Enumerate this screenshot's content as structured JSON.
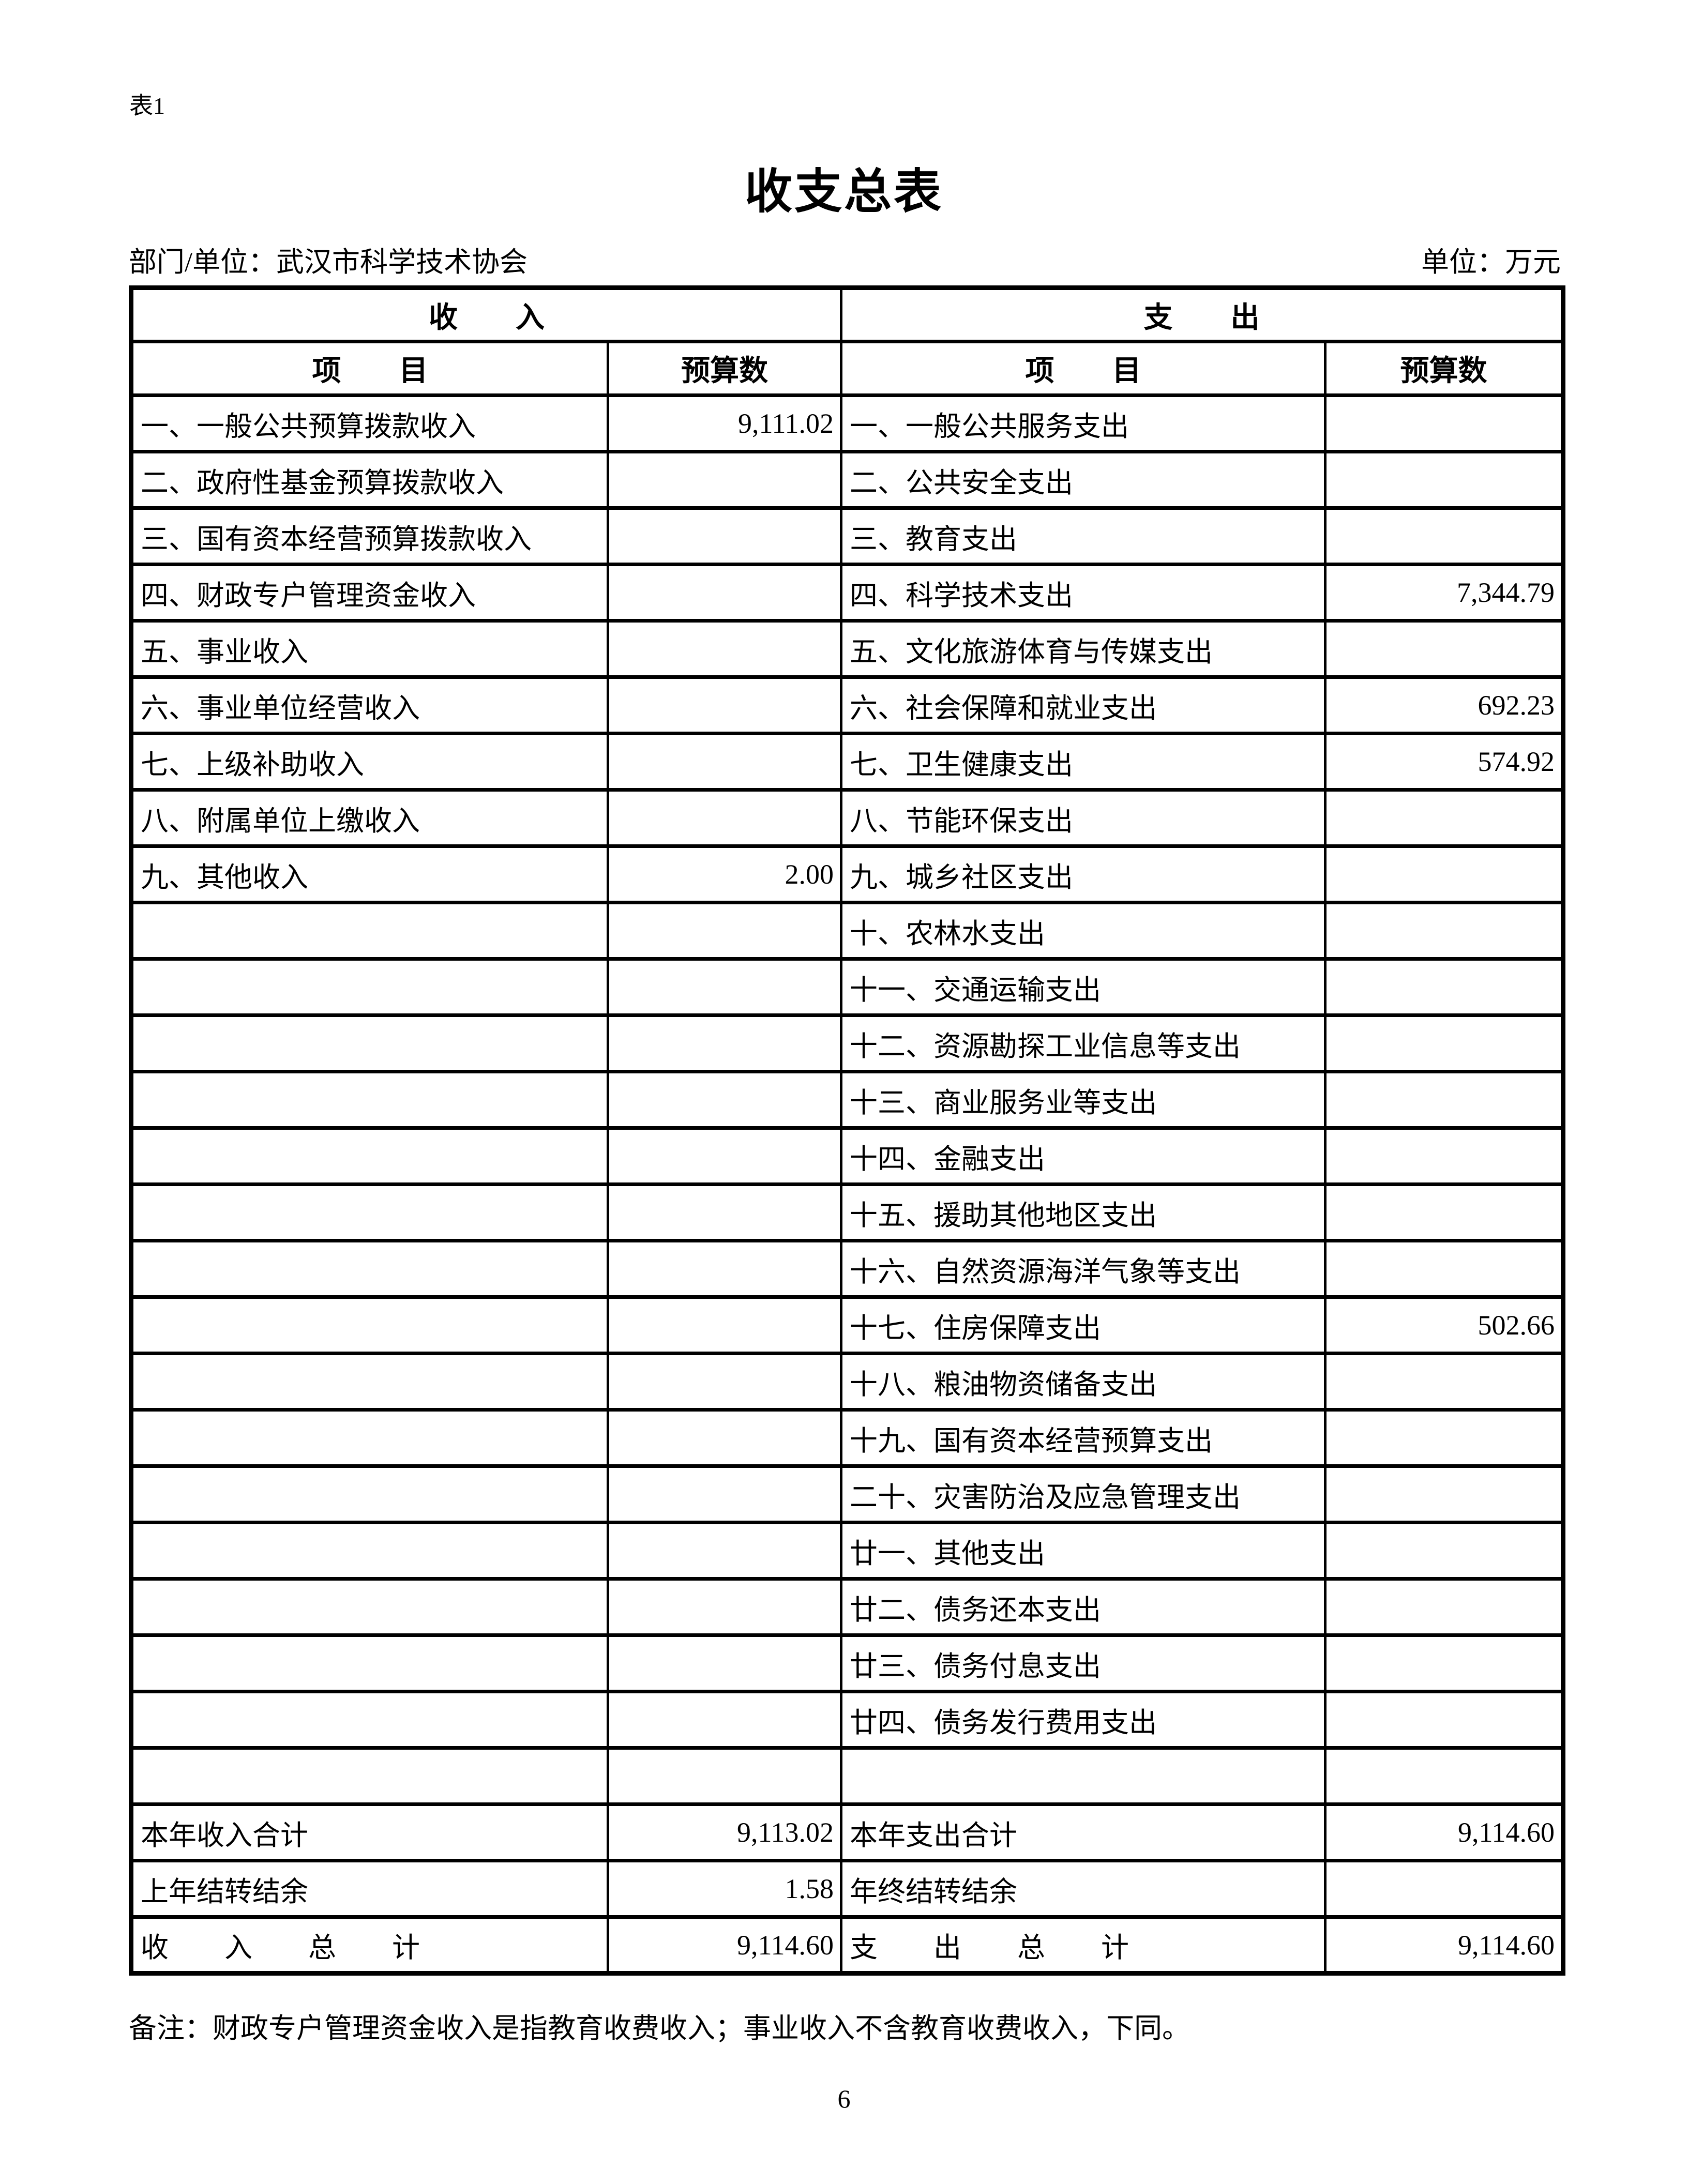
{
  "page": {
    "table_label": "表1",
    "title": "收支总表",
    "department_label": "部门/单位：武汉市科学技术协会",
    "unit_label": "单位：万元",
    "note": "备注：财政专户管理资金收入是指教育收费收入；事业收入不含教育收费收入，下同。",
    "page_number": "6"
  },
  "table": {
    "income_header": "收　　入",
    "expense_header": "支　　出",
    "item_header": "项　　目",
    "budget_header": "预算数",
    "rows": [
      {
        "income_item": "一、一般公共预算拨款收入",
        "income_value": "9,111.02",
        "expense_item": "一、一般公共服务支出",
        "expense_value": ""
      },
      {
        "income_item": "二、政府性基金预算拨款收入",
        "income_value": "",
        "expense_item": "二、公共安全支出",
        "expense_value": ""
      },
      {
        "income_item": "三、国有资本经营预算拨款收入",
        "income_value": "",
        "expense_item": "三、教育支出",
        "expense_value": ""
      },
      {
        "income_item": "四、财政专户管理资金收入",
        "income_value": "",
        "expense_item": "四、科学技术支出",
        "expense_value": "7,344.79"
      },
      {
        "income_item": "五、事业收入",
        "income_value": "",
        "expense_item": "五、文化旅游体育与传媒支出",
        "expense_value": ""
      },
      {
        "income_item": "六、事业单位经营收入",
        "income_value": "",
        "expense_item": "六、社会保障和就业支出",
        "expense_value": "692.23"
      },
      {
        "income_item": "七、上级补助收入",
        "income_value": "",
        "expense_item": "七、卫生健康支出",
        "expense_value": "574.92"
      },
      {
        "income_item": "八、附属单位上缴收入",
        "income_value": "",
        "expense_item": "八、节能环保支出",
        "expense_value": ""
      },
      {
        "income_item": "九、其他收入",
        "income_value": "2.00",
        "expense_item": "九、城乡社区支出",
        "expense_value": ""
      },
      {
        "income_item": "",
        "income_value": "",
        "expense_item": "十、农林水支出",
        "expense_value": ""
      },
      {
        "income_item": "",
        "income_value": "",
        "expense_item": "十一、交通运输支出",
        "expense_value": ""
      },
      {
        "income_item": "",
        "income_value": "",
        "expense_item": "十二、资源勘探工业信息等支出",
        "expense_value": ""
      },
      {
        "income_item": "",
        "income_value": "",
        "expense_item": "十三、商业服务业等支出",
        "expense_value": ""
      },
      {
        "income_item": "",
        "income_value": "",
        "expense_item": "十四、金融支出",
        "expense_value": ""
      },
      {
        "income_item": "",
        "income_value": "",
        "expense_item": "十五、援助其他地区支出",
        "expense_value": ""
      },
      {
        "income_item": "",
        "income_value": "",
        "expense_item": "十六、自然资源海洋气象等支出",
        "expense_value": ""
      },
      {
        "income_item": "",
        "income_value": "",
        "expense_item": "十七、住房保障支出",
        "expense_value": "502.66"
      },
      {
        "income_item": "",
        "income_value": "",
        "expense_item": "十八、粮油物资储备支出",
        "expense_value": ""
      },
      {
        "income_item": "",
        "income_value": "",
        "expense_item": "十九、国有资本经营预算支出",
        "expense_value": ""
      },
      {
        "income_item": "",
        "income_value": "",
        "expense_item": "二十、灾害防治及应急管理支出",
        "expense_value": ""
      },
      {
        "income_item": "",
        "income_value": "",
        "expense_item": "廿一、其他支出",
        "expense_value": ""
      },
      {
        "income_item": "",
        "income_value": "",
        "expense_item": "廿二、债务还本支出",
        "expense_value": ""
      },
      {
        "income_item": "",
        "income_value": "",
        "expense_item": "廿三、债务付息支出",
        "expense_value": ""
      },
      {
        "income_item": "",
        "income_value": "",
        "expense_item": "廿四、债务发行费用支出",
        "expense_value": ""
      },
      {
        "income_item": "",
        "income_value": "",
        "expense_item": "",
        "expense_value": ""
      }
    ],
    "totals": [
      {
        "income_item": "本年收入合计",
        "income_value": "9,113.02",
        "expense_item": "本年支出合计",
        "expense_value": "9,114.60"
      },
      {
        "income_item": "上年结转结余",
        "income_value": "1.58",
        "expense_item": "年终结转结余",
        "expense_value": ""
      },
      {
        "income_item": "收　　入　　总　　计",
        "income_value": "9,114.60",
        "expense_item": "支　　出　　总　　计",
        "expense_value": "9,114.60"
      }
    ]
  }
}
